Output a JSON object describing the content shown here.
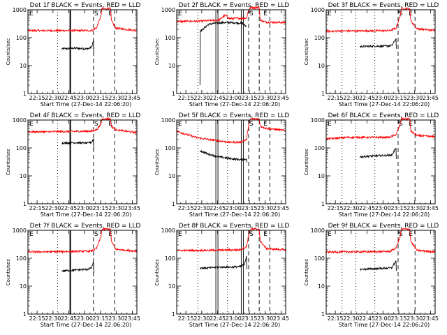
{
  "figure": {
    "xlabel": "Start Time (27-Dec-14 22:06:20)",
    "ylabel": "Counts/sec",
    "x_ticks": [
      "22:15",
      "22:30",
      "22:45",
      "23:00",
      "23:15",
      "23:30",
      "23:45"
    ],
    "y_ticks": [
      "1",
      "10",
      "100",
      "1000"
    ],
    "region_markers": [
      "E",
      "S",
      "E"
    ],
    "colors": {
      "events": "#000000",
      "lld": "#ff0000",
      "axes": "#000000",
      "background": "#ffffff"
    }
  },
  "chart_data": [
    {
      "type": "line",
      "title": "Det 1f BLACK = Events, RED = LLD",
      "x_minutes_after_22_06_20": [
        8.67,
        23.67,
        38.67,
        53.67,
        68.67,
        83.67,
        98.67
      ],
      "xlim": [
        0,
        103
      ],
      "ylim": [
        1,
        1000
      ],
      "yscale": "log",
      "series": [
        {
          "name": "Events",
          "color": "#000000",
          "x": [
            32,
            45,
            56,
            60,
            62,
            62.3
          ],
          "values": [
            40,
            42,
            40,
            45,
            80,
            30
          ]
        },
        {
          "name": "LLD",
          "color": "#ff0000",
          "x": [
            0,
            20,
            40,
            60,
            65,
            69,
            70,
            78,
            79,
            83,
            103
          ],
          "values": [
            180,
            180,
            180,
            180,
            230,
            600,
            1100,
            1100,
            400,
            220,
            180
          ]
        }
      ],
      "vlines": [
        {
          "x": 28,
          "style": "dotted"
        },
        {
          "x": 40,
          "style": "solid-thick"
        },
        {
          "x": 62,
          "style": "dashed"
        },
        {
          "x": 82,
          "style": "dashed"
        }
      ]
    },
    {
      "type": "line",
      "title": "Det 2f BLACK = Events, RED = LLD",
      "x_minutes_after_22_06_20": [
        8.67,
        23.67,
        38.67,
        53.67,
        68.67,
        83.67,
        98.67
      ],
      "xlim": [
        0,
        103
      ],
      "ylim": [
        1,
        1000
      ],
      "yscale": "log",
      "series": [
        {
          "name": "Events",
          "color": "#000000",
          "x": [
            22,
            22.3,
            24,
            30,
            38,
            50,
            62,
            66
          ],
          "values": [
            2,
            180,
            190,
            300,
            340,
            350,
            330,
            250
          ]
        },
        {
          "name": "LLD",
          "color": "#ff0000",
          "x": [
            0,
            20,
            40,
            46,
            50,
            60,
            66,
            68,
            70,
            78,
            79,
            85,
            103
          ],
          "values": [
            380,
            390,
            430,
            650,
            480,
            500,
            500,
            1000,
            1200,
            1200,
            420,
            360,
            350
          ]
        }
      ],
      "vlines": [
        {
          "x": 20,
          "style": "dotted"
        },
        {
          "x": 38,
          "style": "double"
        },
        {
          "x": 48,
          "style": "dotted"
        },
        {
          "x": 62,
          "style": "double"
        },
        {
          "x": 68,
          "style": "dashed"
        },
        {
          "x": 78,
          "style": "dashed"
        },
        {
          "x": 88,
          "style": "dashed"
        }
      ]
    },
    {
      "type": "line",
      "title": "Det 3f BLACK = Events, RED = LLD",
      "x_minutes_after_22_06_20": [
        8.67,
        23.67,
        38.67,
        53.67,
        68.67,
        83.67,
        98.67
      ],
      "xlim": [
        0,
        103
      ],
      "ylim": [
        1,
        1000
      ],
      "yscale": "log",
      "series": [
        {
          "name": "Events",
          "color": "#000000",
          "x": [
            32,
            45,
            56,
            62,
            66,
            66.3
          ],
          "values": [
            48,
            50,
            50,
            52,
            90,
            40
          ]
        },
        {
          "name": "LLD",
          "color": "#ff0000",
          "x": [
            0,
            20,
            40,
            60,
            66,
            70,
            71,
            79,
            80,
            86,
            103
          ],
          "values": [
            170,
            175,
            175,
            180,
            220,
            600,
            1100,
            1100,
            400,
            210,
            180
          ]
        }
      ],
      "vlines": [
        {
          "x": 15,
          "style": "dotted"
        },
        {
          "x": 28,
          "style": "dotted"
        },
        {
          "x": 46,
          "style": "dotted"
        },
        {
          "x": 68,
          "style": "dashed"
        },
        {
          "x": 84,
          "style": "dashed"
        }
      ]
    },
    {
      "type": "line",
      "title": "Det 4f BLACK = Events, RED = LLD",
      "x_minutes_after_22_06_20": [
        8.67,
        23.67,
        38.67,
        53.67,
        68.67,
        83.67,
        98.67
      ],
      "xlim": [
        0,
        103
      ],
      "ylim": [
        1,
        1000
      ],
      "yscale": "log",
      "series": [
        {
          "name": "Events",
          "color": "#000000",
          "x": [
            32,
            45,
            56,
            60,
            62,
            62.3
          ],
          "values": [
            150,
            155,
            150,
            160,
            210,
            90
          ]
        },
        {
          "name": "LLD",
          "color": "#ff0000",
          "x": [
            0,
            20,
            40,
            60,
            65,
            69,
            70,
            78,
            79,
            83,
            103
          ],
          "values": [
            380,
            380,
            390,
            400,
            450,
            700,
            1100,
            1100,
            600,
            450,
            350
          ]
        }
      ],
      "vlines": [
        {
          "x": 28,
          "style": "dotted"
        },
        {
          "x": 40,
          "style": "solid-thick"
        },
        {
          "x": 62,
          "style": "dashed"
        },
        {
          "x": 82,
          "style": "dashed"
        }
      ]
    },
    {
      "type": "line",
      "title": "Det 5f BLACK = Events, RED = LLD",
      "x_minutes_after_22_06_20": [
        8.67,
        23.67,
        38.67,
        53.67,
        68.67,
        83.67,
        98.67
      ],
      "xlim": [
        0,
        103
      ],
      "ylim": [
        1,
        1000
      ],
      "yscale": "log",
      "series": [
        {
          "name": "Events",
          "color": "#000000",
          "x": [
            22,
            30,
            40,
            50,
            60,
            66,
            66.3
          ],
          "values": [
            80,
            60,
            48,
            42,
            38,
            40,
            30
          ]
        },
        {
          "name": "LLD",
          "color": "#ff0000",
          "x": [
            0,
            10,
            20,
            35,
            50,
            60,
            66,
            68,
            70,
            78,
            79,
            85,
            103
          ],
          "values": [
            400,
            300,
            230,
            190,
            160,
            160,
            200,
            700,
            1100,
            1100,
            600,
            500,
            420
          ]
        }
      ],
      "vlines": [
        {
          "x": 20,
          "style": "dotted"
        },
        {
          "x": 38,
          "style": "double"
        },
        {
          "x": 48,
          "style": "dotted"
        },
        {
          "x": 62,
          "style": "double"
        },
        {
          "x": 68,
          "style": "dashed"
        },
        {
          "x": 78,
          "style": "dashed"
        },
        {
          "x": 88,
          "style": "dashed"
        }
      ]
    },
    {
      "type": "line",
      "title": "Det 6f BLACK = Events, RED = LLD",
      "x_minutes_after_22_06_20": [
        8.67,
        23.67,
        38.67,
        53.67,
        68.67,
        83.67,
        98.67
      ],
      "xlim": [
        0,
        103
      ],
      "ylim": [
        1,
        1000
      ],
      "yscale": "log",
      "series": [
        {
          "name": "Events",
          "color": "#000000",
          "x": [
            32,
            45,
            56,
            62,
            66,
            66.3
          ],
          "values": [
            48,
            52,
            54,
            55,
            100,
            40
          ]
        },
        {
          "name": "LLD",
          "color": "#ff0000",
          "x": [
            0,
            20,
            40,
            60,
            66,
            70,
            71,
            79,
            80,
            86,
            103
          ],
          "values": [
            210,
            240,
            240,
            240,
            300,
            700,
            1100,
            1100,
            400,
            280,
            250
          ]
        }
      ],
      "vlines": [
        {
          "x": 15,
          "style": "dotted"
        },
        {
          "x": 28,
          "style": "dotted"
        },
        {
          "x": 46,
          "style": "dotted"
        },
        {
          "x": 68,
          "style": "dashed"
        },
        {
          "x": 84,
          "style": "dashed"
        }
      ]
    },
    {
      "type": "line",
      "title": "Det 7f BLACK = Events, RED = LLD",
      "x_minutes_after_22_06_20": [
        8.67,
        23.67,
        38.67,
        53.67,
        68.67,
        83.67,
        98.67
      ],
      "xlim": [
        0,
        103
      ],
      "ylim": [
        1,
        1000
      ],
      "yscale": "log",
      "series": [
        {
          "name": "Events",
          "color": "#000000",
          "x": [
            32,
            45,
            56,
            60,
            62,
            62.3
          ],
          "values": [
            35,
            38,
            40,
            45,
            75,
            30
          ]
        },
        {
          "name": "LLD",
          "color": "#ff0000",
          "x": [
            0,
            20,
            40,
            60,
            65,
            69,
            70,
            78,
            79,
            83,
            103
          ],
          "values": [
            170,
            170,
            175,
            180,
            230,
            600,
            1100,
            1100,
            400,
            210,
            180
          ]
        }
      ],
      "vlines": [
        {
          "x": 28,
          "style": "dotted"
        },
        {
          "x": 40,
          "style": "solid-thick"
        },
        {
          "x": 62,
          "style": "dashed"
        },
        {
          "x": 82,
          "style": "dashed"
        }
      ]
    },
    {
      "type": "line",
      "title": "Det 8f BLACK = Events, RED = LLD",
      "x_minutes_after_22_06_20": [
        8.67,
        23.67,
        38.67,
        53.67,
        68.67,
        83.67,
        98.67
      ],
      "xlim": [
        0,
        103
      ],
      "ylim": [
        1,
        1000
      ],
      "yscale": "log",
      "series": [
        {
          "name": "Events",
          "color": "#000000",
          "x": [
            22,
            30,
            40,
            50,
            60,
            64,
            66,
            66.3
          ],
          "values": [
            45,
            45,
            48,
            48,
            50,
            60,
            120,
            40
          ]
        },
        {
          "name": "LLD",
          "color": "#ff0000",
          "x": [
            0,
            20,
            40,
            60,
            66,
            68,
            70,
            78,
            79,
            85,
            103
          ],
          "values": [
            190,
            190,
            195,
            200,
            260,
            700,
            1100,
            1100,
            400,
            220,
            200
          ]
        }
      ],
      "vlines": [
        {
          "x": 20,
          "style": "dotted"
        },
        {
          "x": 38,
          "style": "double"
        },
        {
          "x": 48,
          "style": "dotted"
        },
        {
          "x": 62,
          "style": "double"
        },
        {
          "x": 68,
          "style": "dashed"
        },
        {
          "x": 78,
          "style": "dashed"
        },
        {
          "x": 88,
          "style": "dashed"
        }
      ]
    },
    {
      "type": "line",
      "title": "Det 9f BLACK = Events, RED = LLD",
      "x_minutes_after_22_06_20": [
        8.67,
        23.67,
        38.67,
        53.67,
        68.67,
        83.67,
        98.67
      ],
      "xlim": [
        0,
        103
      ],
      "ylim": [
        1,
        1000
      ],
      "yscale": "log",
      "series": [
        {
          "name": "Events",
          "color": "#000000",
          "x": [
            32,
            45,
            56,
            62,
            66,
            66.3
          ],
          "values": [
            40,
            42,
            44,
            45,
            80,
            35
          ]
        },
        {
          "name": "LLD",
          "color": "#ff0000",
          "x": [
            0,
            20,
            40,
            60,
            66,
            70,
            71,
            79,
            80,
            86,
            103
          ],
          "values": [
            165,
            170,
            170,
            175,
            230,
            600,
            1100,
            1100,
            400,
            190,
            170
          ]
        }
      ],
      "vlines": [
        {
          "x": 15,
          "style": "dotted"
        },
        {
          "x": 28,
          "style": "dotted"
        },
        {
          "x": 46,
          "style": "dotted"
        },
        {
          "x": 68,
          "style": "dashed"
        },
        {
          "x": 84,
          "style": "dashed"
        }
      ]
    }
  ]
}
